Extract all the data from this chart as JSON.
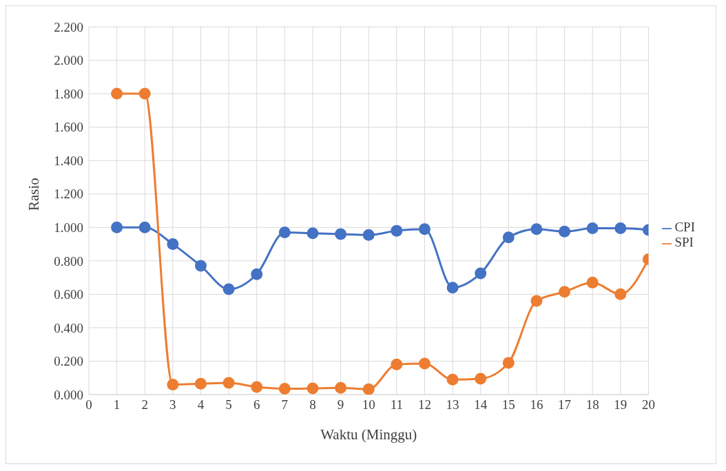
{
  "chart_data": {
    "type": "line",
    "xlabel": "Waktu (Minggu)",
    "ylabel": "Rasio",
    "x": [
      1,
      2,
      3,
      4,
      5,
      6,
      7,
      8,
      9,
      10,
      11,
      12,
      13,
      14,
      15,
      16,
      17,
      18,
      19,
      20
    ],
    "series": [
      {
        "name": "CPI",
        "color": "#4472c4",
        "values": [
          1.0,
          1.0,
          0.9,
          0.77,
          0.63,
          0.72,
          0.97,
          0.965,
          0.96,
          0.955,
          0.98,
          0.99,
          0.64,
          0.725,
          0.94,
          0.99,
          0.975,
          0.995,
          0.995,
          0.985
        ]
      },
      {
        "name": "SPI",
        "color": "#ed7d31",
        "values": [
          1.8,
          1.8,
          0.06,
          0.065,
          0.07,
          0.045,
          0.035,
          0.037,
          0.04,
          0.032,
          0.18,
          0.185,
          0.09,
          0.095,
          0.19,
          0.56,
          0.615,
          0.67,
          0.6,
          0.81
        ]
      }
    ],
    "xlim": [
      0,
      20
    ],
    "xticks": [
      0,
      1,
      2,
      3,
      4,
      5,
      6,
      7,
      8,
      9,
      10,
      11,
      12,
      13,
      14,
      15,
      16,
      17,
      18,
      19,
      20
    ],
    "ylim": [
      0,
      2.2
    ],
    "yticks": [
      {
        "value": 0,
        "label": "0.000"
      },
      {
        "value": 0.2,
        "label": "0.200"
      },
      {
        "value": 0.4,
        "label": "0.400"
      },
      {
        "value": 0.6,
        "label": "0.600"
      },
      {
        "value": 0.8,
        "label": "0.800"
      },
      {
        "value": 1,
        "label": "1.000"
      },
      {
        "value": 1.2,
        "label": "1.200"
      },
      {
        "value": 1.4,
        "label": "1.400"
      },
      {
        "value": 1.6,
        "label": "1.600"
      },
      {
        "value": 1.8,
        "label": "1.800"
      },
      {
        "value": 2,
        "label": "2.000"
      },
      {
        "value": 2.2,
        "label": "2.200"
      }
    ],
    "grid": true,
    "legend": "right",
    "marker": "circle",
    "line_style": "solid"
  }
}
